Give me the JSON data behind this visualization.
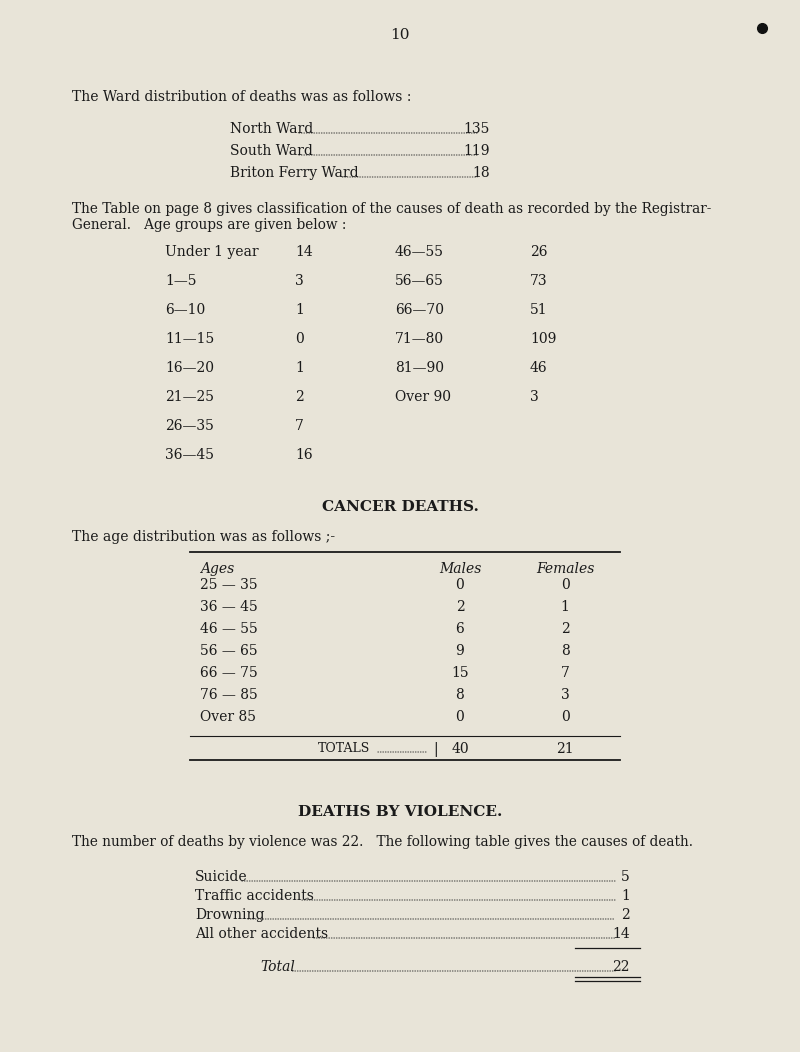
{
  "page_number": "10",
  "bg_color": "#e8e4d8",
  "text_color": "#1a1a1a",
  "ward_intro": "The Ward distribution of deaths was as follows :",
  "ward_table": [
    [
      "North Ward",
      "135"
    ],
    [
      "South Ward",
      "119"
    ],
    [
      "Briton Ferry Ward",
      "18"
    ]
  ],
  "age_intro1": "The Table on page 8 gives classification of the causes of death as recorded by the Registrar-",
  "age_intro2": "General.   Age groups are given below :",
  "age_groups_left": [
    [
      "Under 1 year",
      "14"
    ],
    [
      "1—5",
      "3"
    ],
    [
      "6—10",
      "1"
    ],
    [
      "11—15",
      "0"
    ],
    [
      "16—20",
      "1"
    ],
    [
      "21—25",
      "2"
    ],
    [
      "26—35",
      "7"
    ],
    [
      "36—45",
      "16"
    ]
  ],
  "age_groups_right": [
    [
      "46—55",
      "26"
    ],
    [
      "56—65",
      "73"
    ],
    [
      "66—70",
      "51"
    ],
    [
      "71—80",
      "109"
    ],
    [
      "81—90",
      "46"
    ],
    [
      "Over 90",
      "3"
    ]
  ],
  "cancer_section_title": "CANCER DEATHS.",
  "cancer_intro": "The age distribution was as follows ;-",
  "cancer_col_headers": [
    "Ages",
    "Males",
    "Females"
  ],
  "cancer_rows": [
    [
      "25 — 35",
      "0",
      "0"
    ],
    [
      "36 — 45",
      "2",
      "1"
    ],
    [
      "46 — 55",
      "6",
      "2"
    ],
    [
      "56 — 65",
      "9",
      "8"
    ],
    [
      "66 — 75",
      "15",
      "7"
    ],
    [
      "76 — 85",
      "8",
      "3"
    ],
    [
      "Over 85",
      "0",
      "0"
    ]
  ],
  "cancer_totals_label": "Totals",
  "cancer_totals": [
    "40",
    "21"
  ],
  "violence_section_title": "DEATHS BY VIOLENCE.",
  "violence_intro": "The number of deaths by violence was 22.   The following table gives the causes of death.",
  "violence_rows": [
    [
      "Suicide",
      "5"
    ],
    [
      "Traffic accidents",
      "1"
    ],
    [
      "Drowning",
      "2"
    ],
    [
      "All other accidents",
      "14"
    ]
  ],
  "violence_total_label": "Total",
  "violence_total": "22"
}
